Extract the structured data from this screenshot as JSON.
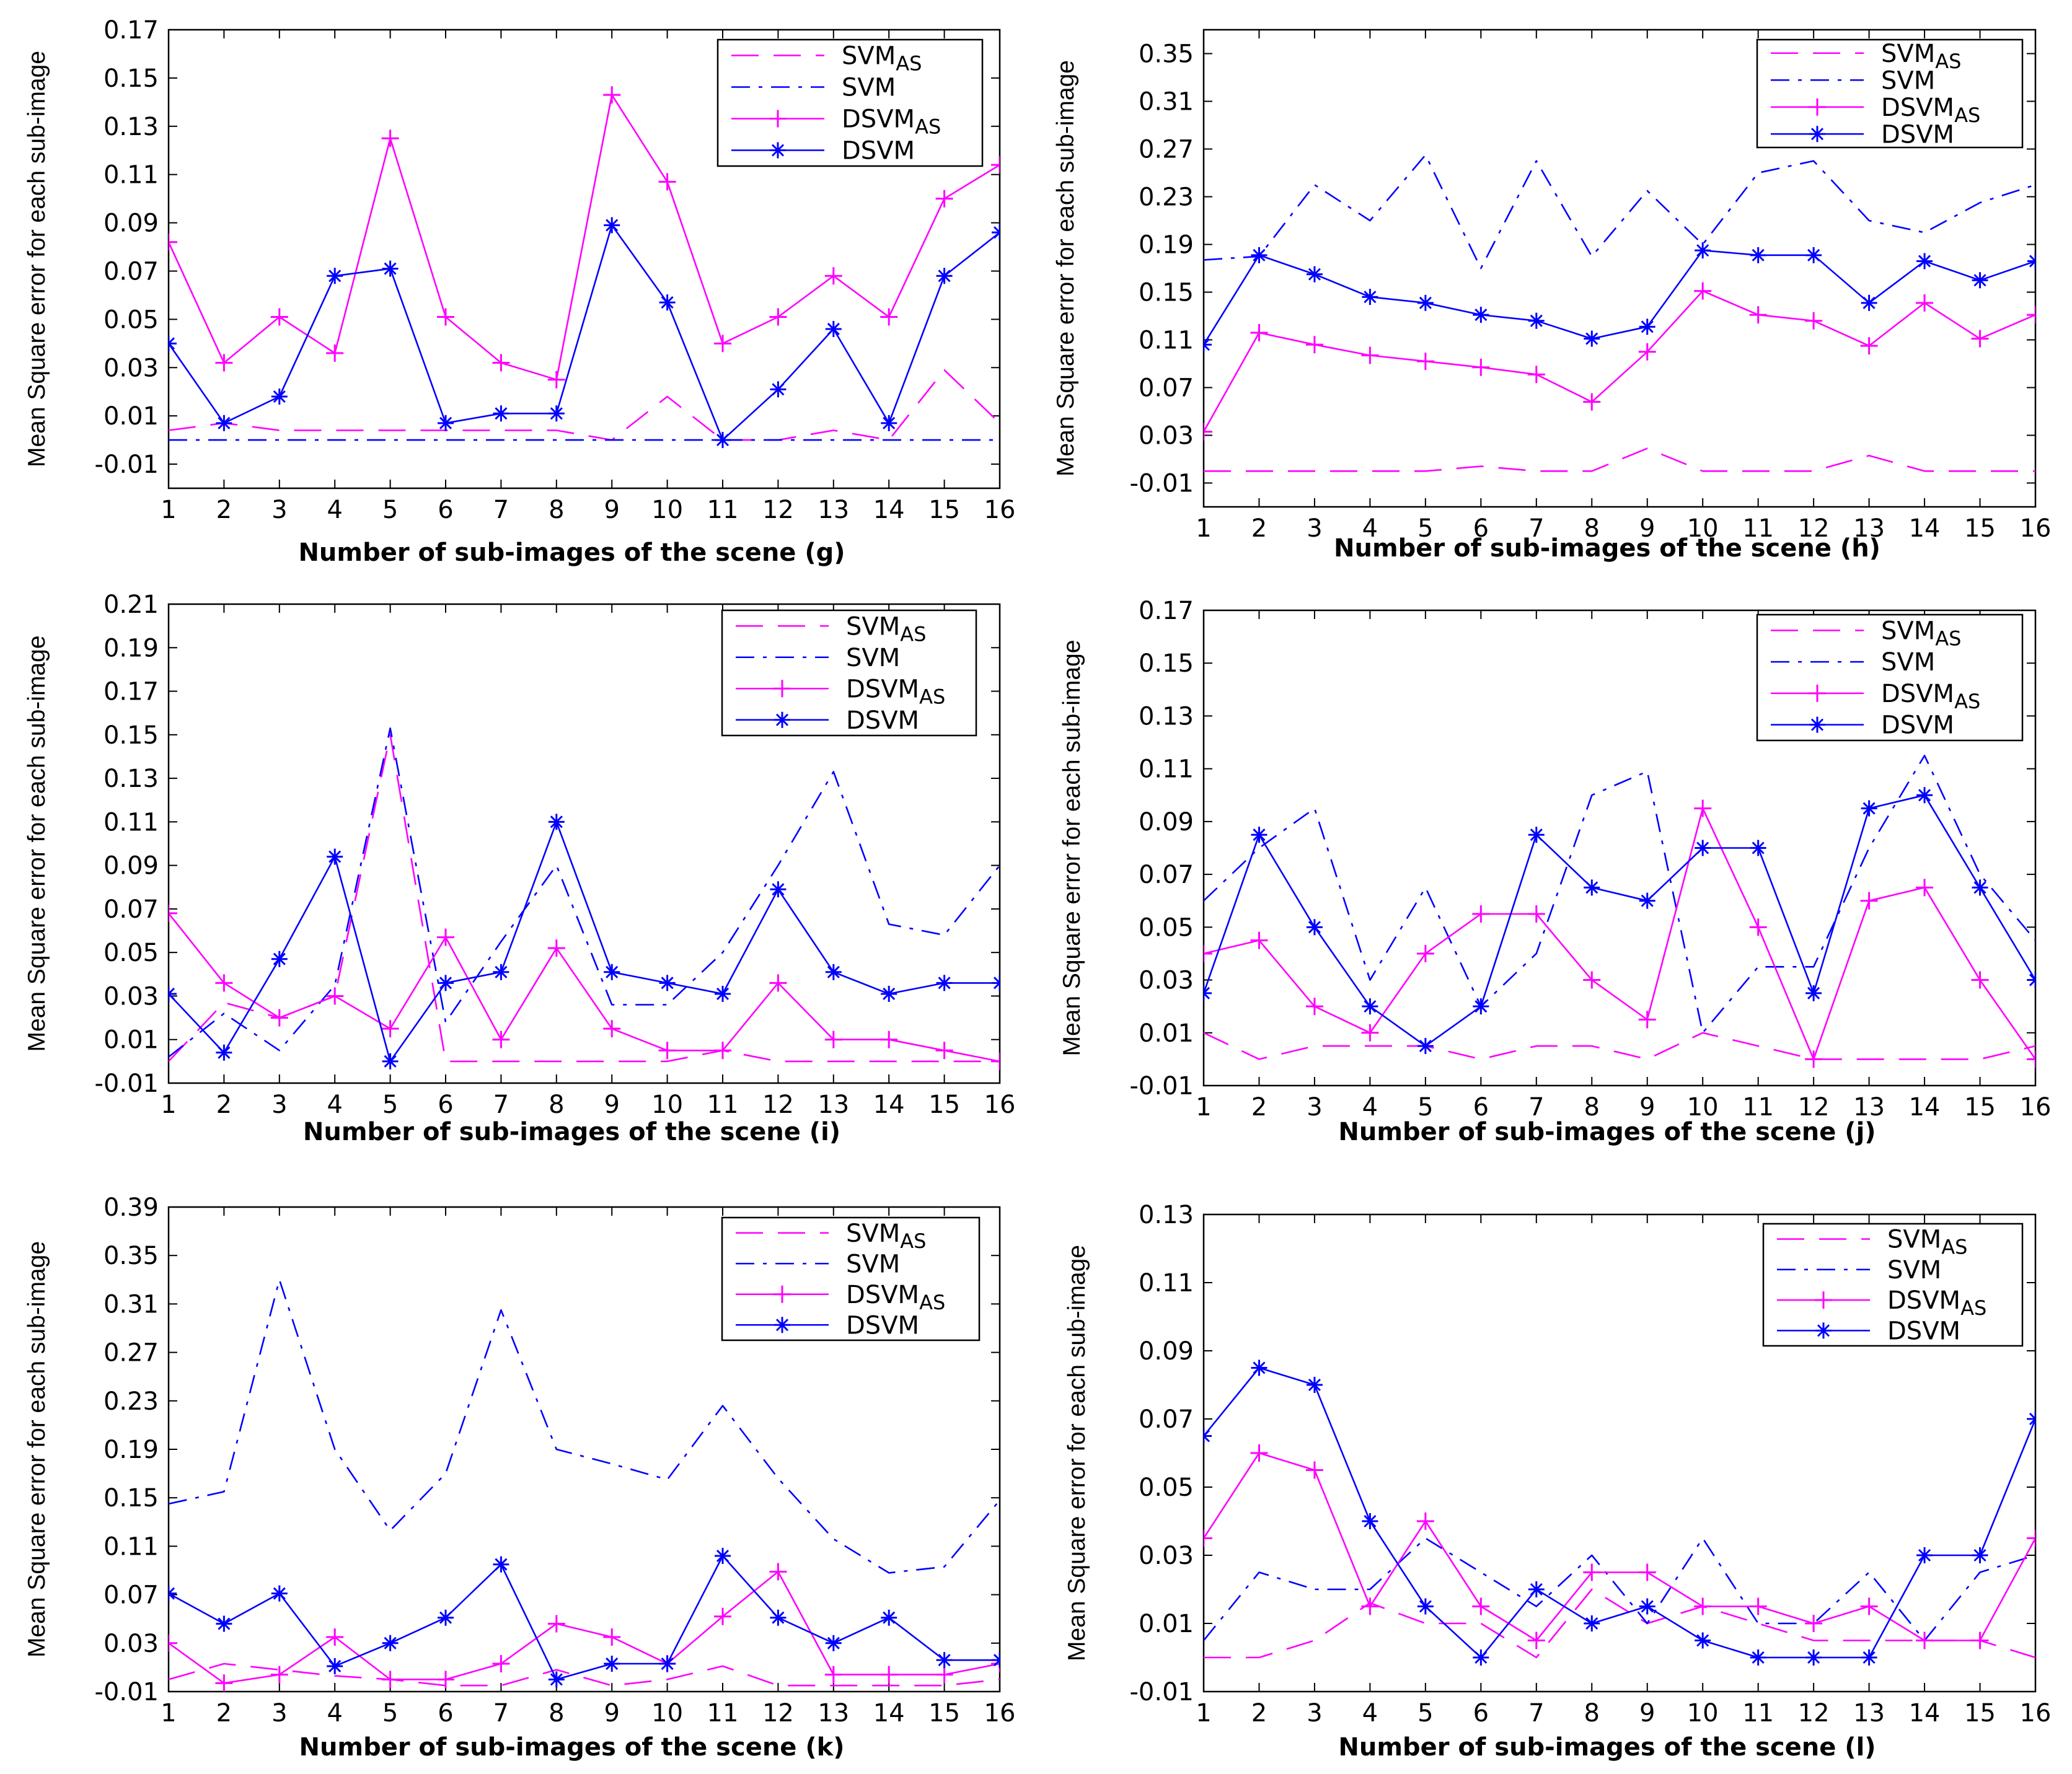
{
  "chart_data": [
    {
      "id": "g",
      "type": "line",
      "x": [
        1,
        2,
        3,
        4,
        5,
        6,
        7,
        8,
        9,
        10,
        11,
        12,
        13,
        14,
        15,
        16
      ],
      "ylim": [
        -0.02,
        0.17
      ],
      "yticks": [
        "-0.01",
        "0.01",
        "0.03",
        "0.05",
        "0.07",
        "0.09",
        "0.11",
        "0.13",
        "0.15",
        "0.17"
      ],
      "ylabel": "Mean Square error for each sub-image",
      "xlabel": "Number of sub-images of the scene (g)",
      "legend": [
        {
          "name": "SVM",
          "sub": "AS"
        },
        {
          "name": "SVM",
          "sub": ""
        },
        {
          "name": "DSVM",
          "sub": "AS"
        },
        {
          "name": "DSVM",
          "sub": ""
        }
      ],
      "series": [
        {
          "name": "SVM_AS",
          "style": "dashed",
          "color": "#ff00ff",
          "values": [
            0.004,
            0.007,
            0.004,
            0.004,
            0.004,
            0.004,
            0.004,
            0.004,
            0.0,
            0.018,
            0.0,
            0.0,
            0.004,
            0.0,
            0.029,
            0.007
          ]
        },
        {
          "name": "SVM",
          "style": "dashdot",
          "color": "#0000ff",
          "values": [
            0,
            0,
            0,
            0,
            0,
            0,
            0,
            0,
            0,
            0,
            0,
            0,
            0,
            0,
            0,
            0
          ]
        },
        {
          "name": "DSVM_AS",
          "style": "plus",
          "color": "#ff00ff",
          "values": [
            0.082,
            0.032,
            0.051,
            0.036,
            0.125,
            0.051,
            0.032,
            0.025,
            0.143,
            0.107,
            0.04,
            0.051,
            0.068,
            0.051,
            0.1,
            0.114
          ]
        },
        {
          "name": "DSVM",
          "style": "star",
          "color": "#0000ff",
          "values": [
            0.04,
            0.007,
            0.018,
            0.068,
            0.071,
            0.007,
            0.011,
            0.011,
            0.089,
            0.057,
            0.0,
            0.021,
            0.046,
            0.007,
            0.068,
            0.086
          ]
        }
      ]
    },
    {
      "id": "h",
      "type": "line",
      "x": [
        1,
        2,
        3,
        4,
        5,
        6,
        7,
        8,
        9,
        10,
        11,
        12,
        13,
        14,
        15,
        16
      ],
      "ylim": [
        -0.03,
        0.37
      ],
      "yticks": [
        "-0.01",
        "0.03",
        "0.07",
        "0.11",
        "0.15",
        "0.19",
        "0.23",
        "0.27",
        "0.31",
        "0.35"
      ],
      "ylabel": "Mean Square error for each sub-image",
      "xlabel": "Number of sub-images of the scene (h)",
      "legend": [
        {
          "name": "SVM",
          "sub": "AS"
        },
        {
          "name": "SVM",
          "sub": ""
        },
        {
          "name": "DSVM",
          "sub": "AS"
        },
        {
          "name": "DSVM",
          "sub": ""
        }
      ],
      "series": [
        {
          "name": "SVM_AS",
          "style": "dashed",
          "color": "#ff00ff",
          "values": [
            0.0,
            0.0,
            0.0,
            0.0,
            0.0,
            0.004,
            0.0,
            0.0,
            0.019,
            0.0,
            0.0,
            0.0,
            0.013,
            0.0,
            0.0,
            0.0
          ]
        },
        {
          "name": "SVM",
          "style": "dashdot",
          "color": "#0000ff",
          "values": [
            0.177,
            0.18,
            0.24,
            0.21,
            0.265,
            0.17,
            0.26,
            0.18,
            0.235,
            0.19,
            0.25,
            0.26,
            0.21,
            0.2,
            0.225,
            0.24
          ]
        },
        {
          "name": "DSVM_AS",
          "style": "plus",
          "color": "#ff00ff",
          "values": [
            0.033,
            0.116,
            0.106,
            0.097,
            0.092,
            0.087,
            0.081,
            0.058,
            0.1,
            0.151,
            0.131,
            0.126,
            0.105,
            0.141,
            0.111,
            0.131
          ]
        },
        {
          "name": "DSVM",
          "style": "star",
          "color": "#0000ff",
          "values": [
            0.106,
            0.181,
            0.165,
            0.146,
            0.141,
            0.131,
            0.126,
            0.111,
            0.121,
            0.185,
            0.181,
            0.181,
            0.141,
            0.176,
            0.16,
            0.176
          ]
        }
      ]
    },
    {
      "id": "i",
      "type": "line",
      "x": [
        1,
        2,
        3,
        4,
        5,
        6,
        7,
        8,
        9,
        10,
        11,
        12,
        13,
        14,
        15,
        16
      ],
      "ylim": [
        -0.01,
        0.21
      ],
      "yticks": [
        "-0.01",
        "0.01",
        "0.03",
        "0.05",
        "0.07",
        "0.09",
        "0.11",
        "0.13",
        "0.15",
        "0.17",
        "0.19",
        "0.21"
      ],
      "ylabel": "Mean Square error for each sub-image",
      "xlabel": "Number of sub-images of the scene (i)",
      "legend": [
        {
          "name": "SVM",
          "sub": "AS"
        },
        {
          "name": "SVM",
          "sub": ""
        },
        {
          "name": "DSVM",
          "sub": "AS"
        },
        {
          "name": "DSVM",
          "sub": ""
        }
      ],
      "series": [
        {
          "name": "SVM_AS",
          "style": "dashed",
          "color": "#ff00ff",
          "values": [
            0.0,
            0.027,
            0.02,
            0.03,
            0.15,
            0.0,
            0.0,
            0.0,
            0.0,
            0.0,
            0.005,
            0.0,
            0.0,
            0.0,
            0.0,
            0.0
          ]
        },
        {
          "name": "SVM",
          "style": "dashdot",
          "color": "#0000ff",
          "values": [
            0.002,
            0.022,
            0.005,
            0.035,
            0.153,
            0.018,
            0.055,
            0.09,
            0.026,
            0.026,
            0.05,
            0.09,
            0.133,
            0.063,
            0.058,
            0.09
          ]
        },
        {
          "name": "DSVM_AS",
          "style": "plus",
          "color": "#ff00ff",
          "values": [
            0.068,
            0.036,
            0.02,
            0.03,
            0.015,
            0.057,
            0.01,
            0.052,
            0.015,
            0.005,
            0.005,
            0.036,
            0.01,
            0.01,
            0.005,
            0.0
          ]
        },
        {
          "name": "DSVM",
          "style": "star",
          "color": "#0000ff",
          "values": [
            0.031,
            0.004,
            0.047,
            0.094,
            0.0,
            0.036,
            0.041,
            0.11,
            0.041,
            0.036,
            0.031,
            0.079,
            0.041,
            0.031,
            0.036,
            0.036
          ]
        }
      ]
    },
    {
      "id": "j",
      "type": "line",
      "x": [
        1,
        2,
        3,
        4,
        5,
        6,
        7,
        8,
        9,
        10,
        11,
        12,
        13,
        14,
        15,
        16
      ],
      "ylim": [
        -0.01,
        0.17
      ],
      "yticks": [
        "-0.01",
        "0.01",
        "0.03",
        "0.05",
        "0.07",
        "0.09",
        "0.11",
        "0.13",
        "0.15",
        "0.17"
      ],
      "ylabel": "Mean Square error for each sub-image",
      "xlabel": "Number of sub-images of the scene (j)",
      "legend": [
        {
          "name": "SVM",
          "sub": "AS"
        },
        {
          "name": "SVM",
          "sub": ""
        },
        {
          "name": "DSVM",
          "sub": "AS"
        },
        {
          "name": "DSVM",
          "sub": ""
        }
      ],
      "series": [
        {
          "name": "SVM_AS",
          "style": "dashed",
          "color": "#ff00ff",
          "values": [
            0.01,
            0.0,
            0.005,
            0.005,
            0.005,
            0.0,
            0.005,
            0.005,
            0.0,
            0.01,
            0.005,
            0.0,
            0.0,
            0.0,
            0.0,
            0.005
          ]
        },
        {
          "name": "SVM",
          "style": "dashdot",
          "color": "#0000ff",
          "values": [
            0.06,
            0.08,
            0.095,
            0.03,
            0.065,
            0.02,
            0.04,
            0.1,
            0.109,
            0.01,
            0.035,
            0.035,
            0.08,
            0.115,
            0.07,
            0.045
          ]
        },
        {
          "name": "DSVM_AS",
          "style": "plus",
          "color": "#ff00ff",
          "values": [
            0.04,
            0.045,
            0.02,
            0.01,
            0.04,
            0.055,
            0.055,
            0.03,
            0.015,
            0.095,
            0.05,
            0.0,
            0.06,
            0.065,
            0.03,
            0.0
          ]
        },
        {
          "name": "DSVM",
          "style": "star",
          "color": "#0000ff",
          "values": [
            0.025,
            0.085,
            0.05,
            0.02,
            0.005,
            0.02,
            0.085,
            0.065,
            0.06,
            0.08,
            0.08,
            0.025,
            0.095,
            0.1,
            0.065,
            0.03
          ]
        }
      ]
    },
    {
      "id": "k",
      "type": "line",
      "x": [
        1,
        2,
        3,
        4,
        5,
        6,
        7,
        8,
        9,
        10,
        11,
        12,
        13,
        14,
        15,
        16
      ],
      "ylim": [
        -0.01,
        0.39
      ],
      "yticks": [
        "-0.01",
        "0.03",
        "0.07",
        "0.11",
        "0.15",
        "0.19",
        "0.23",
        "0.27",
        "0.31",
        "0.35",
        "0.39"
      ],
      "ylabel": "Mean Square error for each sub-image",
      "xlabel": "Number of sub-images of the scene (k)",
      "legend": [
        {
          "name": "SVM",
          "sub": "AS"
        },
        {
          "name": "SVM",
          "sub": ""
        },
        {
          "name": "DSVM",
          "sub": "AS"
        },
        {
          "name": "DSVM",
          "sub": ""
        }
      ],
      "series": [
        {
          "name": "SVM_AS",
          "style": "dashed",
          "color": "#ff00ff",
          "values": [
            0.0,
            0.013,
            0.008,
            0.003,
            0.0,
            -0.005,
            -0.005,
            0.008,
            -0.005,
            0.0,
            0.011,
            -0.005,
            -0.005,
            -0.005,
            -0.005,
            0.0
          ]
        },
        {
          "name": "SVM",
          "style": "dashdot",
          "color": "#0000ff",
          "values": [
            0.145,
            0.155,
            0.33,
            0.19,
            0.123,
            0.17,
            0.305,
            0.19,
            0.178,
            0.165,
            0.226,
            0.166,
            0.116,
            0.088,
            0.093,
            0.148
          ]
        },
        {
          "name": "DSVM_AS",
          "style": "plus",
          "color": "#ff00ff",
          "values": [
            0.03,
            -0.003,
            0.004,
            0.035,
            0.0,
            0.0,
            0.013,
            0.046,
            0.035,
            0.013,
            0.052,
            0.089,
            0.004,
            0.004,
            0.004,
            0.013
          ]
        },
        {
          "name": "DSVM",
          "style": "star",
          "color": "#0000ff",
          "values": [
            0.071,
            0.046,
            0.071,
            0.011,
            0.03,
            0.051,
            0.095,
            0.0,
            0.013,
            0.013,
            0.102,
            0.051,
            0.03,
            0.051,
            0.016,
            0.016
          ]
        }
      ]
    },
    {
      "id": "l",
      "type": "line",
      "x": [
        1,
        2,
        3,
        4,
        5,
        6,
        7,
        8,
        9,
        10,
        11,
        12,
        13,
        14,
        15,
        16
      ],
      "ylim": [
        -0.01,
        0.13
      ],
      "yticks": [
        "-0.01",
        "0.01",
        "0.03",
        "0.05",
        "0.07",
        "0.09",
        "0.11",
        "0.13"
      ],
      "ylabel": "Mean Square error for each sub-image",
      "xlabel": "Number of sub-images of the scene (l)",
      "legend": [
        {
          "name": "SVM",
          "sub": "AS"
        },
        {
          "name": "SVM",
          "sub": ""
        },
        {
          "name": "DSVM",
          "sub": "AS"
        },
        {
          "name": "DSVM",
          "sub": ""
        }
      ],
      "series": [
        {
          "name": "SVM_AS",
          "style": "dashed",
          "color": "#ff00ff",
          "values": [
            0.0,
            0.0,
            0.005,
            0.016,
            0.01,
            0.01,
            0.0,
            0.02,
            0.01,
            0.015,
            0.01,
            0.005,
            0.005,
            0.005,
            0.005,
            0.0
          ]
        },
        {
          "name": "SVM",
          "style": "dashdot",
          "color": "#0000ff",
          "values": [
            0.005,
            0.025,
            0.02,
            0.02,
            0.035,
            0.025,
            0.015,
            0.03,
            0.01,
            0.035,
            0.01,
            0.01,
            0.025,
            0.005,
            0.025,
            0.03
          ]
        },
        {
          "name": "DSVM_AS",
          "style": "plus",
          "color": "#ff00ff",
          "values": [
            0.035,
            0.06,
            0.055,
            0.015,
            0.04,
            0.015,
            0.005,
            0.025,
            0.025,
            0.015,
            0.015,
            0.01,
            0.015,
            0.005,
            0.005,
            0.035
          ]
        },
        {
          "name": "DSVM",
          "style": "star",
          "color": "#0000ff",
          "values": [
            0.065,
            0.085,
            0.08,
            0.04,
            0.015,
            0.0,
            0.02,
            0.01,
            0.015,
            0.005,
            0.0,
            0.0,
            0.0,
            0.03,
            0.03,
            0.07
          ]
        }
      ]
    }
  ]
}
